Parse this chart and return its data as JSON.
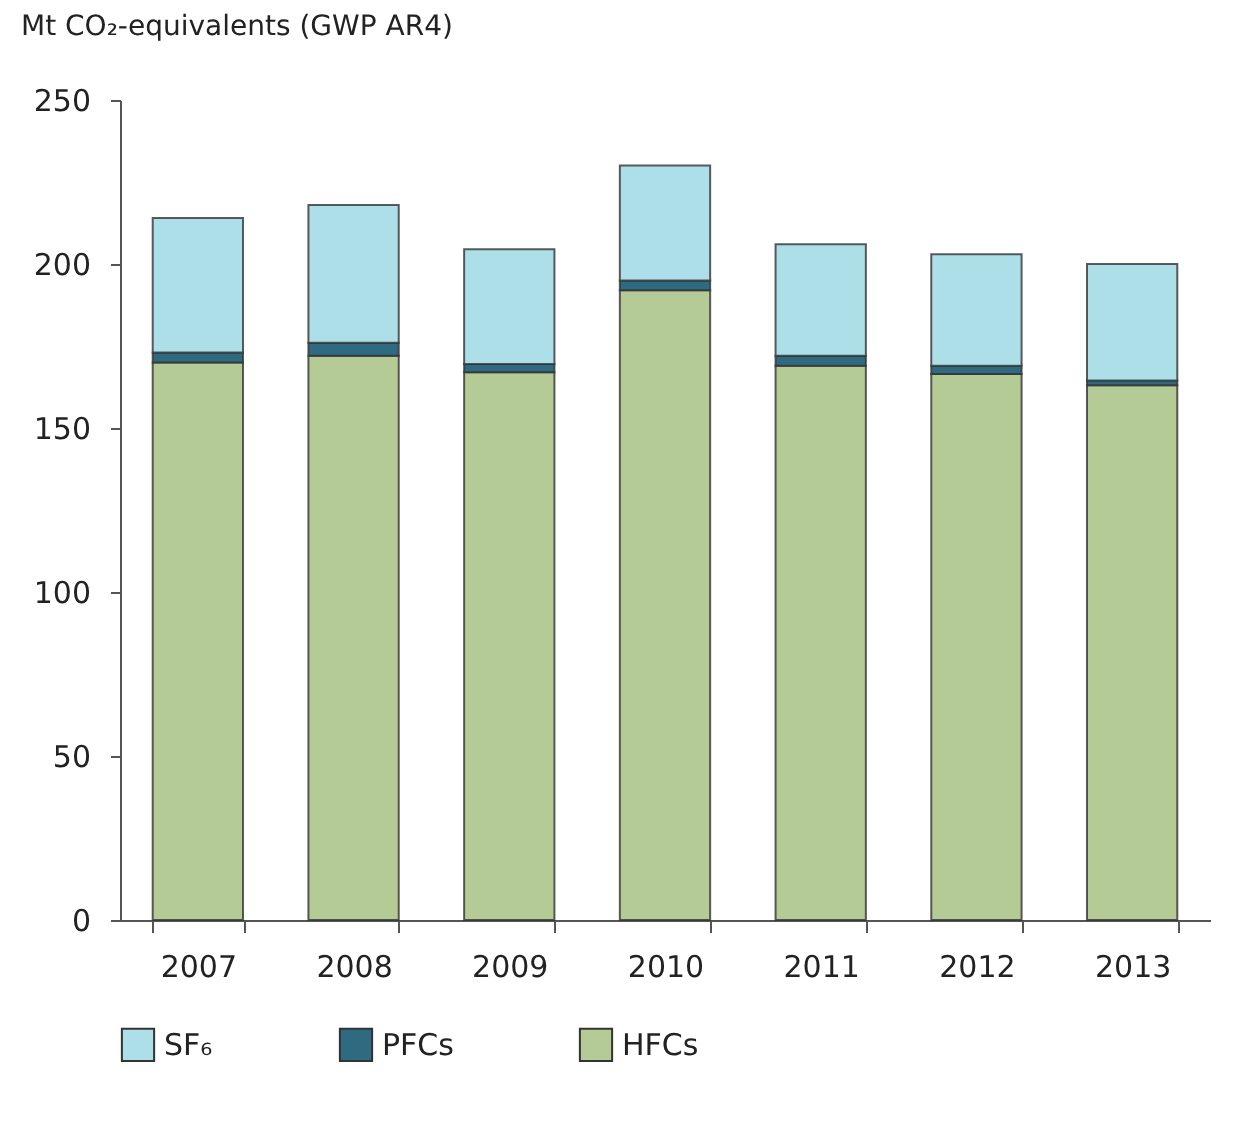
{
  "chart_data": {
    "type": "bar",
    "stacked": true,
    "ylabel": "Mt CO₂-equivalents (GWP AR4)",
    "categories": [
      "2007",
      "2008",
      "2009",
      "2010",
      "2011",
      "2012",
      "2013"
    ],
    "series": [
      {
        "name": "HFCs",
        "color": "#b5cb96",
        "values": [
          170,
          172,
          167,
          192,
          169,
          166.5,
          163
        ]
      },
      {
        "name": "PFCs",
        "color": "#2f6b80",
        "values": [
          3,
          4,
          2.5,
          3,
          3,
          2.5,
          1.5
        ]
      },
      {
        "name": "SF₆",
        "color": "#acdfe8",
        "values": [
          41,
          42,
          35,
          35,
          34,
          34,
          35.5
        ]
      }
    ],
    "ylim": [
      0,
      250
    ],
    "yticks": [
      0,
      50,
      100,
      150,
      200,
      250
    ],
    "grid": false,
    "legend": "bottom"
  }
}
